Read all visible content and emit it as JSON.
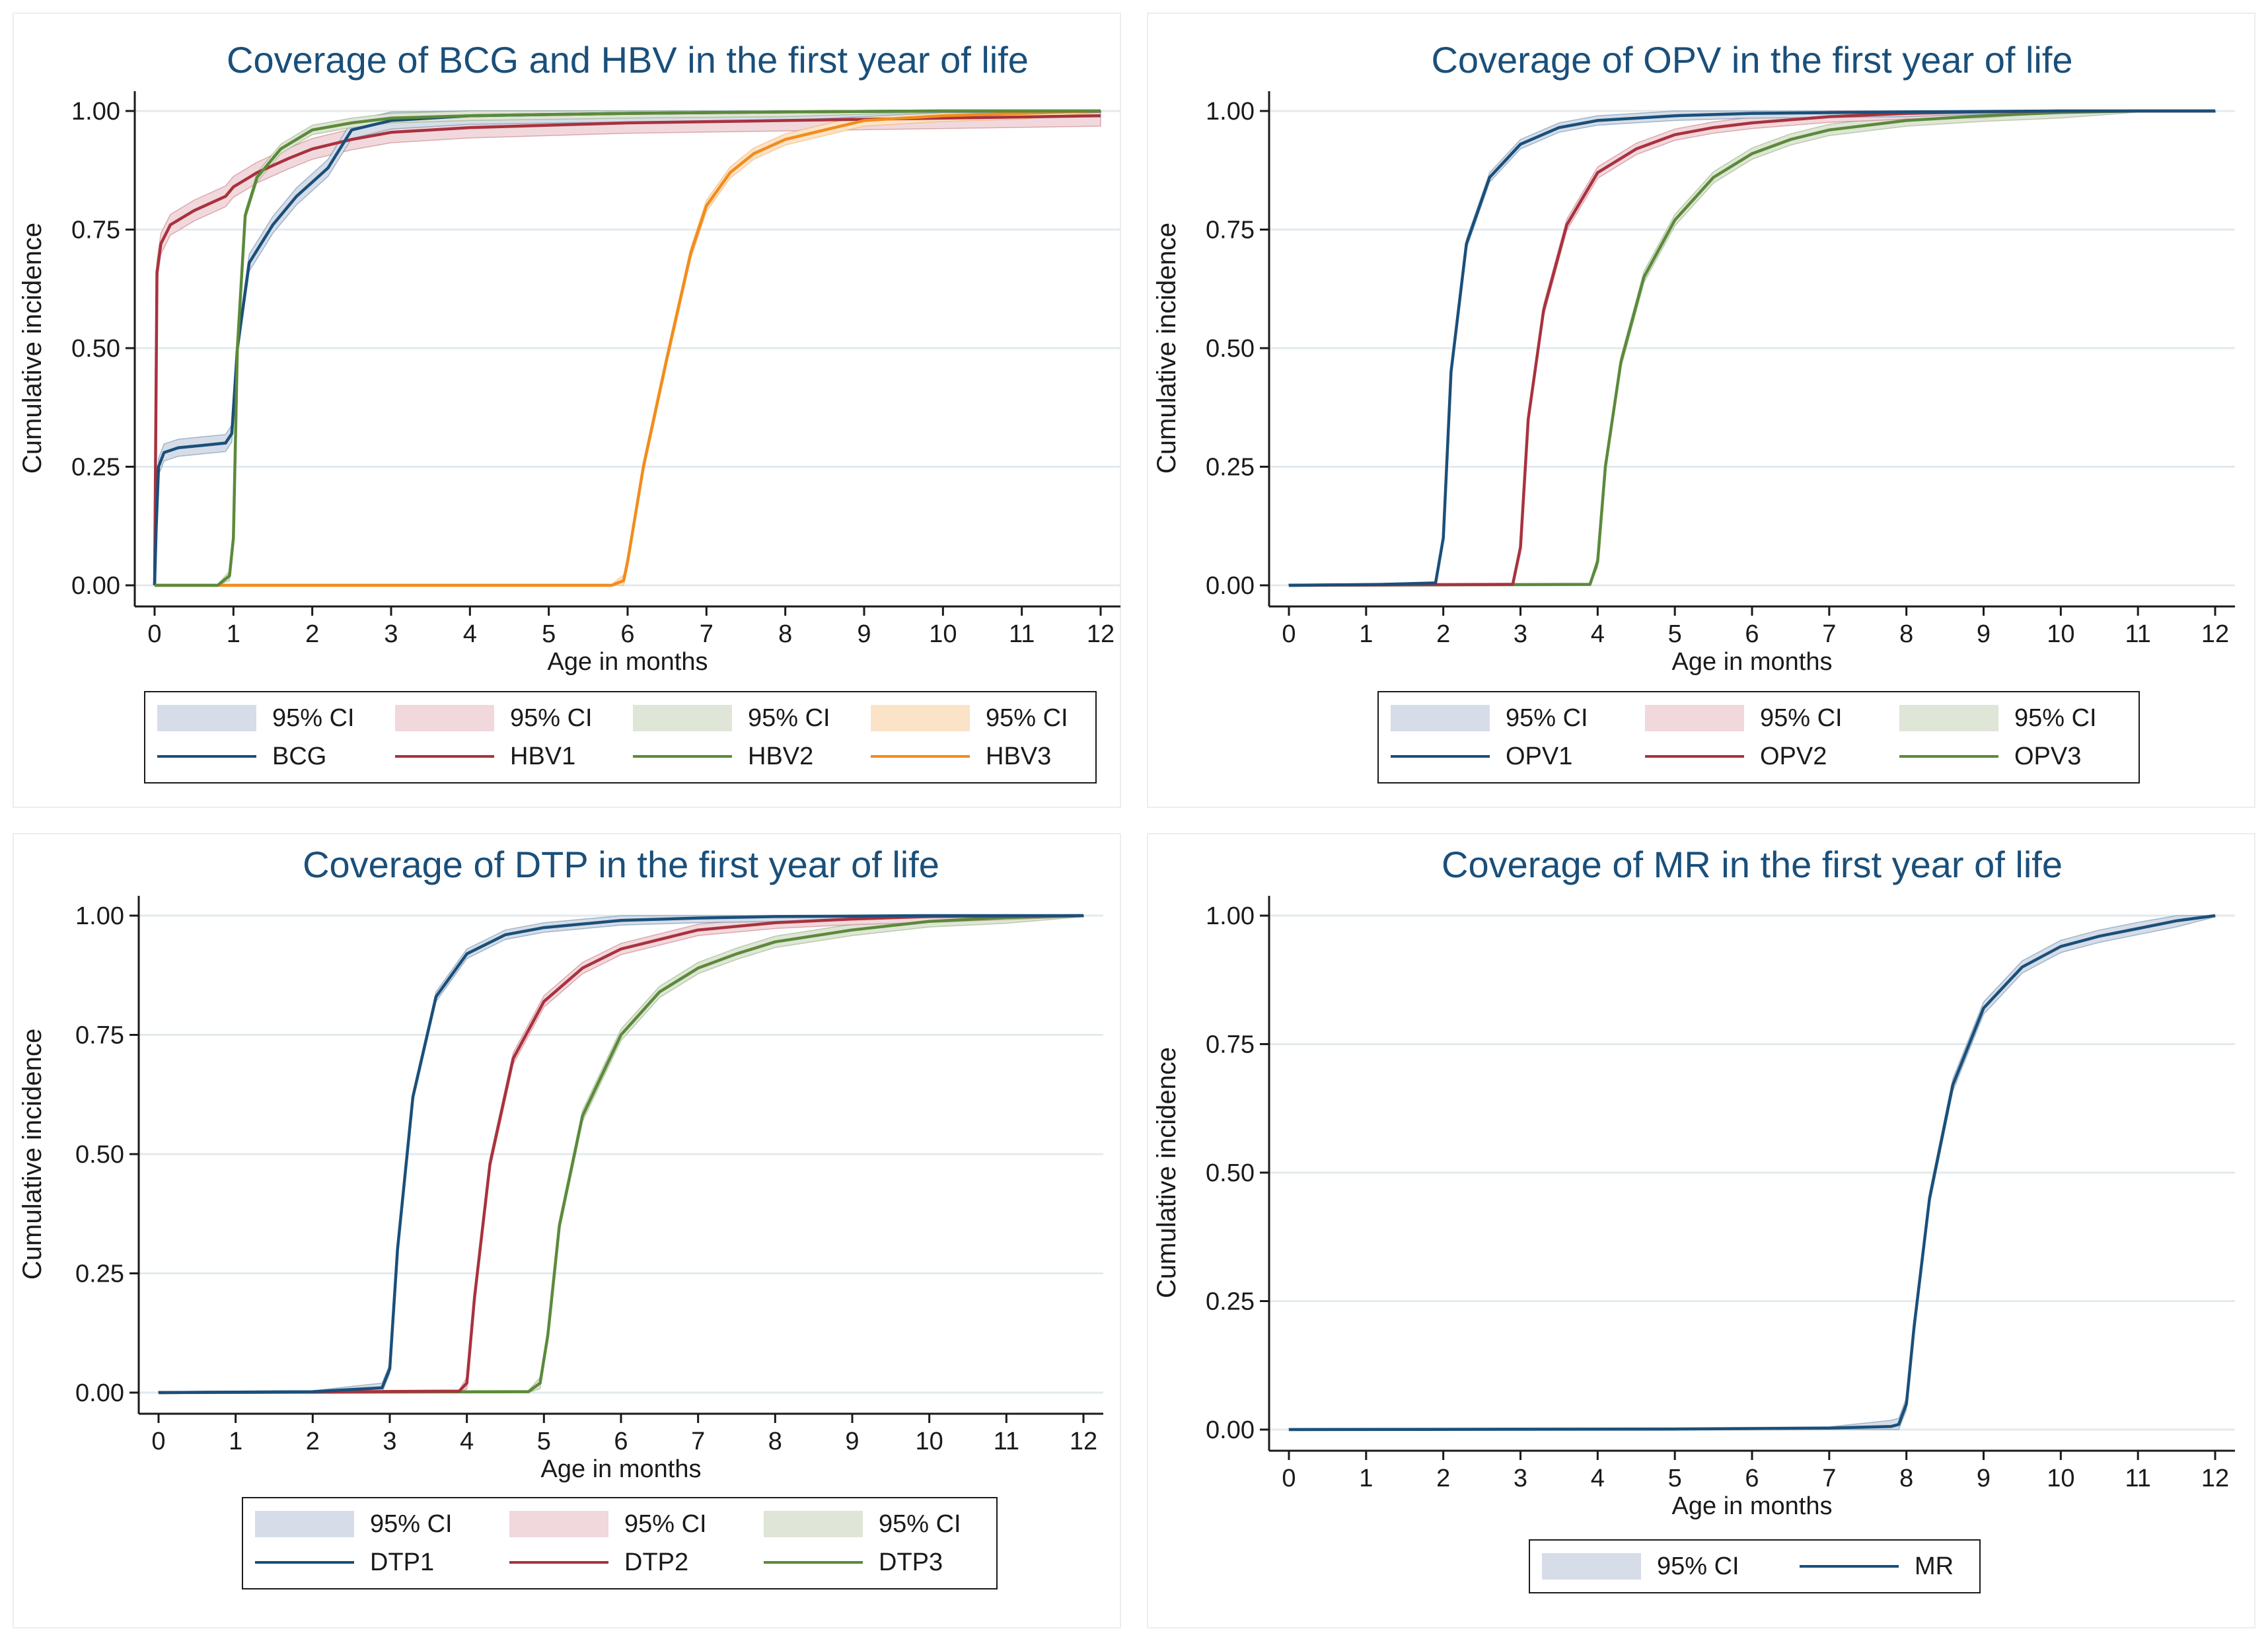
{
  "chart_data": [
    {
      "type": "line",
      "title": "Coverage of BCG and HBV in the first year of life",
      "xlabel": "Age in months",
      "ylabel": "Cumulative incidence",
      "xlim": [
        0,
        12
      ],
      "ylim": [
        0,
        1
      ],
      "xticks": [
        "0",
        "1",
        "2",
        "3",
        "4",
        "5",
        "6",
        "7",
        "8",
        "9",
        "10",
        "11",
        "12"
      ],
      "yticks": [
        "0.00",
        "0.25",
        "0.50",
        "0.75",
        "1.00"
      ],
      "grid": true,
      "legend_position": "bottom",
      "legend": [
        {
          "kind": "ci",
          "label": "95% CI",
          "color": "#d6dde8"
        },
        {
          "kind": "ci",
          "label": "95% CI",
          "color": "#f1d8dc"
        },
        {
          "kind": "ci",
          "label": "95% CI",
          "color": "#dfe5d7"
        },
        {
          "kind": "ci",
          "label": "95% CI",
          "color": "#fbe3c8"
        },
        {
          "kind": "line",
          "label": "BCG",
          "color": "#1a4f7a"
        },
        {
          "kind": "line",
          "label": "HBV1",
          "color": "#a8323e"
        },
        {
          "kind": "line",
          "label": "HBV2",
          "color": "#5b8a3a"
        },
        {
          "kind": "line",
          "label": "HBV3",
          "color": "#f28c1c"
        }
      ],
      "series": [
        {
          "name": "HBV1",
          "color": "#a8323e",
          "band_color": "#f1d8dc",
          "ci": 0.022,
          "x": [
            0,
            0.03,
            0.08,
            0.2,
            0.5,
            0.9,
            1.0,
            1.3,
            1.7,
            2.0,
            2.5,
            3,
            4,
            6,
            8,
            10,
            12
          ],
          "y": [
            0,
            0.66,
            0.72,
            0.76,
            0.79,
            0.82,
            0.84,
            0.87,
            0.9,
            0.92,
            0.94,
            0.955,
            0.965,
            0.975,
            0.98,
            0.985,
            0.99
          ]
        },
        {
          "name": "HBV3",
          "color": "#f28c1c",
          "band_color": "#fbe3c8",
          "ci": 0.012,
          "x": [
            0,
            5.8,
            5.95,
            6.0,
            6.2,
            6.5,
            6.8,
            7.0,
            7.3,
            7.6,
            8,
            8.5,
            9,
            9.5,
            10,
            11,
            12
          ],
          "y": [
            0,
            0,
            0.01,
            0.05,
            0.25,
            0.48,
            0.7,
            0.8,
            0.87,
            0.91,
            0.94,
            0.96,
            0.98,
            0.985,
            0.99,
            0.995,
            1.0
          ]
        },
        {
          "name": "BCG",
          "color": "#1a4f7a",
          "band_color": "#d6dde8",
          "ci": 0.018,
          "x": [
            0,
            0.02,
            0.05,
            0.12,
            0.3,
            0.6,
            0.9,
            0.98,
            1.05,
            1.2,
            1.5,
            1.8,
            2.0,
            2.2,
            2.5,
            3,
            4,
            6,
            8,
            10,
            12
          ],
          "y": [
            0,
            0.12,
            0.25,
            0.28,
            0.29,
            0.295,
            0.3,
            0.32,
            0.5,
            0.68,
            0.76,
            0.82,
            0.85,
            0.88,
            0.96,
            0.98,
            0.99,
            0.995,
            0.998,
            1.0,
            1.0
          ]
        },
        {
          "name": "HBV2",
          "color": "#5b8a3a",
          "band_color": "#dfe5d7",
          "ci": 0.01,
          "x": [
            0,
            0.8,
            0.95,
            1.0,
            1.05,
            1.15,
            1.3,
            1.6,
            2.0,
            2.5,
            3,
            4,
            6,
            8,
            10,
            12
          ],
          "y": [
            0,
            0,
            0.02,
            0.1,
            0.5,
            0.78,
            0.86,
            0.92,
            0.96,
            0.975,
            0.985,
            0.99,
            0.995,
            0.998,
            1.0,
            1.0
          ]
        }
      ]
    },
    {
      "type": "line",
      "title": "Coverage of OPV in the first year of life",
      "xlabel": "Age in months",
      "ylabel": "Cumulative incidence",
      "xlim": [
        0,
        12
      ],
      "ylim": [
        0,
        1
      ],
      "xticks": [
        "0",
        "1",
        "2",
        "3",
        "4",
        "5",
        "6",
        "7",
        "8",
        "9",
        "10",
        "11",
        "12"
      ],
      "yticks": [
        "0.00",
        "0.25",
        "0.50",
        "0.75",
        "1.00"
      ],
      "grid": true,
      "legend_position": "bottom",
      "legend": [
        {
          "kind": "ci",
          "label": "95% CI",
          "color": "#d6dde8"
        },
        {
          "kind": "ci",
          "label": "95% CI",
          "color": "#f1d8dc"
        },
        {
          "kind": "ci",
          "label": "95% CI",
          "color": "#dfe5d7"
        },
        {
          "kind": "line",
          "label": "OPV1",
          "color": "#1a4f7a"
        },
        {
          "kind": "line",
          "label": "OPV2",
          "color": "#a8323e"
        },
        {
          "kind": "line",
          "label": "OPV3",
          "color": "#5b8a3a"
        }
      ],
      "series": [
        {
          "name": "OPV3",
          "color": "#5b8a3a",
          "band_color": "#dfe5d7",
          "ci": 0.012,
          "x": [
            0,
            3.9,
            4.0,
            4.1,
            4.3,
            4.6,
            5,
            5.5,
            6,
            6.5,
            7,
            8,
            9,
            10,
            11,
            12
          ],
          "y": [
            0,
            0.002,
            0.05,
            0.25,
            0.47,
            0.65,
            0.77,
            0.86,
            0.91,
            0.94,
            0.96,
            0.98,
            0.99,
            0.997,
            1.0,
            1.0
          ]
        },
        {
          "name": "OPV2",
          "color": "#a8323e",
          "band_color": "#f1d8dc",
          "ci": 0.012,
          "x": [
            0,
            2.9,
            3.0,
            3.1,
            3.3,
            3.6,
            4,
            4.5,
            5,
            5.5,
            6,
            7,
            8,
            9,
            10,
            12
          ],
          "y": [
            0,
            0.002,
            0.08,
            0.35,
            0.58,
            0.76,
            0.87,
            0.92,
            0.95,
            0.965,
            0.975,
            0.988,
            0.995,
            0.998,
            1.0,
            1.0
          ]
        },
        {
          "name": "OPV1",
          "color": "#1a4f7a",
          "band_color": "#d6dde8",
          "ci": 0.01,
          "x": [
            0,
            1.2,
            1.9,
            2.0,
            2.1,
            2.3,
            2.6,
            3,
            3.5,
            4,
            5,
            6,
            8,
            10,
            12
          ],
          "y": [
            0,
            0.002,
            0.005,
            0.1,
            0.45,
            0.72,
            0.86,
            0.93,
            0.965,
            0.98,
            0.99,
            0.995,
            0.998,
            1.0,
            1.0
          ]
        }
      ]
    },
    {
      "type": "line",
      "title": "Coverage of DTP in the first year of life",
      "xlabel": "Age in months",
      "ylabel": "Cumulative incidence",
      "xlim": [
        0,
        12
      ],
      "ylim": [
        0,
        1
      ],
      "xticks": [
        "0",
        "1",
        "2",
        "3",
        "4",
        "5",
        "6",
        "7",
        "8",
        "9",
        "10",
        "11",
        "12"
      ],
      "yticks": [
        "0.00",
        "0.25",
        "0.50",
        "0.75",
        "1.00"
      ],
      "grid": true,
      "legend_position": "bottom",
      "legend": [
        {
          "kind": "ci",
          "label": "95% CI",
          "color": "#d6dde8"
        },
        {
          "kind": "ci",
          "label": "95% CI",
          "color": "#f1d8dc"
        },
        {
          "kind": "ci",
          "label": "95% CI",
          "color": "#dfe5d7"
        },
        {
          "kind": "line",
          "label": "DTP1",
          "color": "#1a4f7a"
        },
        {
          "kind": "line",
          "label": "DTP2",
          "color": "#a8323e"
        },
        {
          "kind": "line",
          "label": "DTP3",
          "color": "#5b8a3a"
        }
      ],
      "series": [
        {
          "name": "DTP3",
          "color": "#5b8a3a",
          "band_color": "#dfe5d7",
          "ci": 0.012,
          "x": [
            0,
            4.8,
            4.95,
            5.05,
            5.2,
            5.5,
            6,
            6.5,
            7,
            7.5,
            8,
            9,
            10,
            11,
            12
          ],
          "y": [
            0,
            0.002,
            0.02,
            0.12,
            0.35,
            0.58,
            0.75,
            0.84,
            0.89,
            0.92,
            0.945,
            0.97,
            0.988,
            0.996,
            1.0
          ]
        },
        {
          "name": "DTP2",
          "color": "#a8323e",
          "band_color": "#f1d8dc",
          "ci": 0.012,
          "x": [
            0,
            3.9,
            4.0,
            4.1,
            4.3,
            4.6,
            5,
            5.5,
            6,
            7,
            8,
            9,
            10,
            12
          ],
          "y": [
            0,
            0.003,
            0.02,
            0.2,
            0.48,
            0.7,
            0.82,
            0.89,
            0.93,
            0.97,
            0.985,
            0.993,
            0.998,
            1.0
          ]
        },
        {
          "name": "DTP1",
          "color": "#1a4f7a",
          "band_color": "#d6dde8",
          "ci": 0.01,
          "x": [
            0,
            2,
            2.9,
            3.0,
            3.1,
            3.3,
            3.6,
            4,
            4.5,
            5,
            6,
            7,
            8,
            10,
            12
          ],
          "y": [
            0,
            0.002,
            0.01,
            0.05,
            0.3,
            0.62,
            0.83,
            0.92,
            0.96,
            0.975,
            0.99,
            0.995,
            0.998,
            1.0,
            1.0
          ]
        }
      ]
    },
    {
      "type": "line",
      "title": "Coverage of MR in the first year of life",
      "xlabel": "Age in months",
      "ylabel": "Cumulative incidence",
      "xlim": [
        0,
        12
      ],
      "ylim": [
        0,
        1
      ],
      "xticks": [
        "0",
        "1",
        "2",
        "3",
        "4",
        "5",
        "6",
        "7",
        "8",
        "9",
        "10",
        "11",
        "12"
      ],
      "yticks": [
        "0.00",
        "0.25",
        "0.50",
        "0.75",
        "1.00"
      ],
      "grid": true,
      "legend_position": "bottom",
      "legend": [
        {
          "kind": "ci",
          "label": "95% CI",
          "color": "#d6dde8"
        },
        {
          "kind": "line",
          "label": "MR",
          "color": "#1a4f7a"
        }
      ],
      "series": [
        {
          "name": "MR",
          "color": "#1a4f7a",
          "band_color": "#d6dde8",
          "ci": 0.012,
          "x": [
            0,
            5,
            7,
            7.8,
            7.9,
            8.0,
            8.1,
            8.3,
            8.6,
            9,
            9.5,
            10,
            10.5,
            11,
            11.5,
            12
          ],
          "y": [
            0,
            0.001,
            0.003,
            0.006,
            0.01,
            0.05,
            0.2,
            0.45,
            0.67,
            0.82,
            0.9,
            0.94,
            0.96,
            0.975,
            0.99,
            1.0
          ]
        }
      ]
    }
  ]
}
